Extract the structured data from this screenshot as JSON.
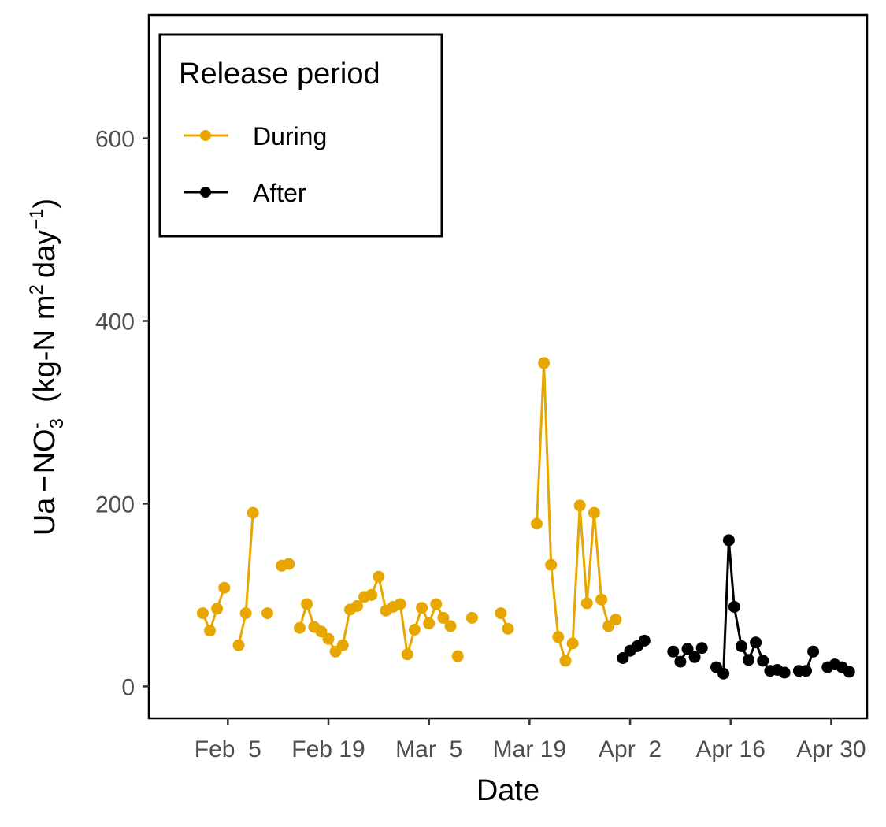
{
  "chart_data": {
    "type": "line",
    "xlabel": "Date",
    "ylabel": {
      "prefix": "Ua",
      "minus": "−",
      "species": "NO",
      "species_sub": "3",
      "species_sup": "-",
      "units_open": "(kg-N",
      "units_m": "m",
      "units_m_sup": "2",
      "units_day": "day",
      "units_day_sup": "−1",
      "units_close": ")"
    },
    "ylim": [
      -35,
      735
    ],
    "yticks": [
      0,
      200,
      400,
      600
    ],
    "ytick_labels": [
      "0",
      "200",
      "400",
      "600"
    ],
    "xlim": [
      "2023-01-25",
      "2023-05-05"
    ],
    "xticks": [
      "2023-02-05",
      "2023-02-19",
      "2023-03-05",
      "2023-03-19",
      "2023-04-02",
      "2023-04-16",
      "2023-04-30"
    ],
    "xtick_labels": [
      "Feb  5",
      "Feb 19",
      "Mar  5",
      "Mar 19",
      "Apr  2",
      "Apr 16",
      "Apr 30"
    ],
    "grid": false,
    "legend": {
      "title": "Release period",
      "placement": "top-left"
    },
    "series": [
      {
        "name": "During",
        "color": "#E8A700",
        "points": [
          [
            "2023-02-01T12:00",
            80
          ],
          [
            "2023-02-02T12:00",
            61
          ],
          [
            "2023-02-03T12:00",
            85
          ],
          [
            "2023-02-04T12:00",
            108
          ],
          [
            "2023-02-06T12:00",
            45
          ],
          [
            "2023-02-07T12:00",
            80
          ],
          [
            "2023-02-08T12:00",
            190
          ],
          [
            "2023-02-10T12:00",
            80
          ],
          [
            "2023-02-12T12:00",
            132
          ],
          [
            "2023-02-13T12:00",
            134
          ],
          [
            "2023-02-15T00:00",
            64
          ],
          [
            "2023-02-16T00:00",
            90
          ],
          [
            "2023-02-17T00:00",
            65
          ],
          [
            "2023-02-18T00:00",
            60
          ],
          [
            "2023-02-19T00:00",
            52
          ],
          [
            "2023-02-20T00:00",
            38
          ],
          [
            "2023-02-21T00:00",
            45
          ],
          [
            "2023-02-22T00:00",
            84
          ],
          [
            "2023-02-23T00:00",
            88
          ],
          [
            "2023-02-24T00:00",
            98
          ],
          [
            "2023-02-25T00:00",
            100
          ],
          [
            "2023-02-26T00:00",
            120
          ],
          [
            "2023-02-27T00:00",
            83
          ],
          [
            "2023-02-28T00:00",
            87
          ],
          [
            "2023-03-01T00:00",
            90
          ],
          [
            "2023-03-02T00:00",
            35
          ],
          [
            "2023-03-03T00:00",
            62
          ],
          [
            "2023-03-04T00:00",
            86
          ],
          [
            "2023-03-05T00:00",
            69
          ],
          [
            "2023-03-06T00:00",
            90
          ],
          [
            "2023-03-07T00:00",
            75
          ],
          [
            "2023-03-08T00:00",
            66
          ],
          [
            "2023-03-09T00:00",
            33
          ],
          [
            "2023-03-11T00:00",
            75
          ],
          [
            "2023-03-15T00:00",
            80
          ],
          [
            "2023-03-16T00:00",
            63
          ],
          [
            "2023-03-20T00:00",
            178
          ],
          [
            "2023-03-21T00:00",
            354
          ],
          [
            "2023-03-22T00:00",
            133
          ],
          [
            "2023-03-23T00:00",
            54
          ],
          [
            "2023-03-24T00:00",
            28
          ],
          [
            "2023-03-25T00:00",
            47
          ],
          [
            "2023-03-26T00:00",
            198
          ],
          [
            "2023-03-27T00:00",
            91
          ],
          [
            "2023-03-28T00:00",
            190
          ],
          [
            "2023-03-29T00:00",
            95
          ],
          [
            "2023-03-30T00:00",
            66
          ],
          [
            "2023-03-31T00:00",
            73
          ]
        ],
        "break_before": [
          4,
          7,
          8,
          10,
          32,
          33,
          34,
          36
        ]
      },
      {
        "name": "After",
        "color": "#000000",
        "points": [
          [
            "2023-04-01T00:00",
            31
          ],
          [
            "2023-04-02T00:00",
            39
          ],
          [
            "2023-04-03T00:00",
            44
          ],
          [
            "2023-04-04T00:00",
            50
          ],
          [
            "2023-04-08T00:00",
            38
          ],
          [
            "2023-04-09T00:00",
            27
          ],
          [
            "2023-04-10T00:00",
            41
          ],
          [
            "2023-04-11T00:00",
            32
          ],
          [
            "2023-04-12T00:00",
            42
          ],
          [
            "2023-04-14T00:00",
            21
          ],
          [
            "2023-04-15T00:00",
            14
          ],
          [
            "2023-04-15T18:00",
            160
          ],
          [
            "2023-04-16T12:00",
            87
          ],
          [
            "2023-04-17T12:00",
            44
          ],
          [
            "2023-04-18T12:00",
            29
          ],
          [
            "2023-04-19T12:00",
            48
          ],
          [
            "2023-04-20T12:00",
            28
          ],
          [
            "2023-04-21T12:00",
            17
          ],
          [
            "2023-04-22T12:00",
            18
          ],
          [
            "2023-04-23T12:00",
            15
          ],
          [
            "2023-04-25T12:00",
            17
          ],
          [
            "2023-04-26T12:00",
            17
          ],
          [
            "2023-04-27T12:00",
            38
          ],
          [
            "2023-04-29T12:00",
            21
          ],
          [
            "2023-04-30T12:00",
            24
          ],
          [
            "2023-05-01T12:00",
            21
          ],
          [
            "2023-05-02T12:00",
            16
          ]
        ],
        "break_before": [
          4,
          9,
          20,
          23
        ]
      }
    ]
  }
}
